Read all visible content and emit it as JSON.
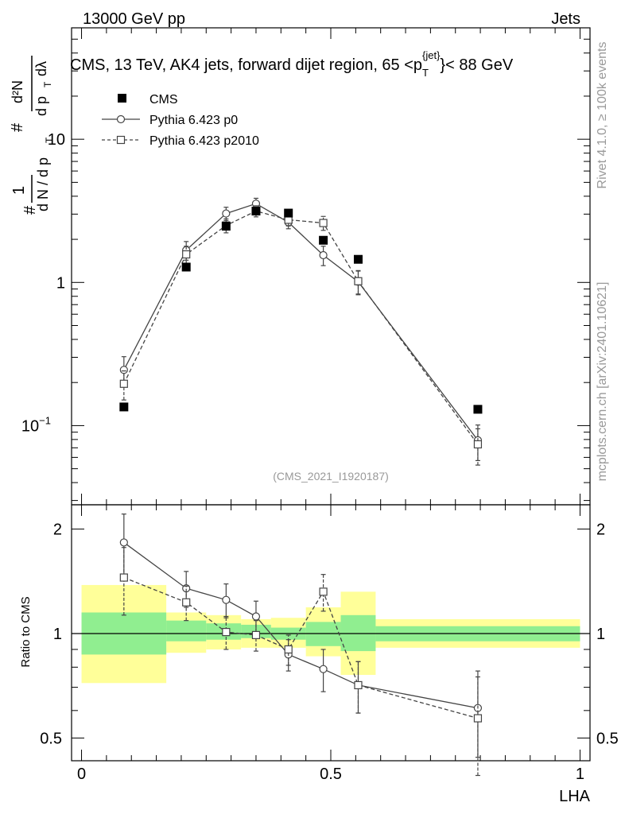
{
  "header": {
    "left": "13000 GeV pp",
    "right": "Jets"
  },
  "side_labels": {
    "rivet": "Rivet 4.1.0, ≥ 100k events",
    "mcplots": "mcplots.cern.ch [arXiv:2401.10621]"
  },
  "colors": {
    "green_band": "#90EE90",
    "yellow_band": "#FFFF99",
    "mc_line": "#444444",
    "cms_marker": "#000000"
  },
  "chart_data": [
    {
      "type": "scatter",
      "title": "CMS, 13 TeV, AK4 jets, forward dijet region, 65 <p_T^{jet}> < 88 GeV",
      "title_parts": {
        "pre": "CMS, 13 TeV, AK4 jets, forward dijet region, 65 <p",
        "sub": "T",
        "sup": "{jet}",
        "post": "}< 88 GeV"
      },
      "ylabel_parts": {
        "hash": "#",
        "one": "1",
        "dN": "d N / d p",
        "T": "T",
        "d2N": "d²N",
        "dpT_dlambda": "d p",
        "dl": "dλ"
      },
      "yscale": "log",
      "ylim": [
        0.028,
        60
      ],
      "xlim": [
        -0.02,
        1.02
      ],
      "yticks": [
        {
          "value": 10,
          "label": "10"
        },
        {
          "value": 1,
          "label": "1"
        },
        {
          "value": 0.1,
          "label": "10",
          "sup": "−1"
        }
      ],
      "analysis_id": "(CMS_2021_I1920187)",
      "legend": [
        {
          "name": "CMS",
          "marker": "filled-square"
        },
        {
          "name": "Pythia 6.423 p0",
          "marker": "open-circle",
          "line": "solid"
        },
        {
          "name": "Pythia 6.423 p2010",
          "marker": "open-square",
          "line": "dashed"
        }
      ],
      "series": [
        {
          "name": "CMS",
          "x": [
            0.085,
            0.21,
            0.29,
            0.35,
            0.415,
            0.485,
            0.555,
            0.795
          ],
          "y": [
            0.135,
            1.28,
            2.47,
            3.15,
            3.05,
            1.97,
            1.45,
            0.13
          ]
        },
        {
          "name": "Pythia 6.423 p0",
          "x": [
            0.085,
            0.21,
            0.29,
            0.35,
            0.415,
            0.485,
            0.555,
            0.795
          ],
          "y": [
            0.245,
            1.68,
            3.03,
            3.55,
            2.63,
            1.55,
            1.01,
            0.079
          ],
          "err": [
            0.058,
            0.25,
            0.32,
            0.32,
            0.26,
            0.24,
            0.19,
            0.022
          ]
        },
        {
          "name": "Pythia 6.423 p2010",
          "x": [
            0.085,
            0.21,
            0.29,
            0.35,
            0.415,
            0.485,
            0.555,
            0.795
          ],
          "y": [
            0.196,
            1.57,
            2.5,
            3.15,
            2.74,
            2.6,
            1.02,
            0.074
          ],
          "err": [
            0.045,
            0.22,
            0.28,
            0.28,
            0.26,
            0.29,
            0.19,
            0.021
          ]
        }
      ]
    },
    {
      "type": "line",
      "ylabel": "Ratio to CMS",
      "xlabel": "LHA",
      "yscale": "log",
      "ylim": [
        0.43,
        2.35
      ],
      "xlim": [
        -0.02,
        1.02
      ],
      "yticks": [
        {
          "value": 2,
          "label": "2"
        },
        {
          "value": 1,
          "label": "1"
        },
        {
          "value": 0.5,
          "label": "0.5"
        }
      ],
      "xticks": [
        {
          "value": 0,
          "label": "0"
        },
        {
          "value": 0.5,
          "label": "0.5"
        },
        {
          "value": 1,
          "label": "1"
        }
      ],
      "bands": [
        {
          "x0": 0.0,
          "x1": 0.17,
          "green": [
            0.87,
            1.15
          ],
          "yellow": [
            0.72,
            1.38
          ]
        },
        {
          "x0": 0.17,
          "x1": 0.25,
          "green": [
            0.95,
            1.09
          ],
          "yellow": [
            0.88,
            1.15
          ]
        },
        {
          "x0": 0.25,
          "x1": 0.32,
          "green": [
            0.96,
            1.07
          ],
          "yellow": [
            0.9,
            1.13
          ]
        },
        {
          "x0": 0.32,
          "x1": 0.38,
          "green": [
            0.97,
            1.06
          ],
          "yellow": [
            0.91,
            1.1
          ]
        },
        {
          "x0": 0.38,
          "x1": 0.45,
          "green": [
            0.96,
            1.04
          ],
          "yellow": [
            0.91,
            1.11
          ]
        },
        {
          "x0": 0.45,
          "x1": 0.52,
          "green": [
            0.92,
            1.08
          ],
          "yellow": [
            0.86,
            1.19
          ]
        },
        {
          "x0": 0.52,
          "x1": 0.59,
          "green": [
            0.89,
            1.13
          ],
          "yellow": [
            0.76,
            1.32
          ]
        },
        {
          "x0": 0.59,
          "x1": 1.0,
          "green": [
            0.95,
            1.05
          ],
          "yellow": [
            0.91,
            1.1
          ]
        }
      ],
      "series": [
        {
          "name": "Pythia 6.423 p0",
          "x": [
            0.085,
            0.21,
            0.29,
            0.35,
            0.415,
            0.485,
            0.555,
            0.795
          ],
          "y": [
            1.83,
            1.35,
            1.25,
            1.12,
            0.87,
            0.79,
            0.71,
            0.61
          ],
          "err": [
            0.38,
            0.16,
            0.14,
            0.12,
            0.09,
            0.11,
            0.12,
            0.17
          ]
        },
        {
          "name": "Pythia 6.423 p2010",
          "x": [
            0.085,
            0.21,
            0.29,
            0.35,
            0.415,
            0.485,
            0.555,
            0.795
          ],
          "y": [
            1.45,
            1.23,
            1.01,
            0.99,
            0.9,
            1.32,
            0.71,
            0.57
          ],
          "err": [
            0.32,
            0.14,
            0.11,
            0.1,
            0.09,
            0.16,
            0.12,
            0.18
          ]
        }
      ]
    }
  ]
}
